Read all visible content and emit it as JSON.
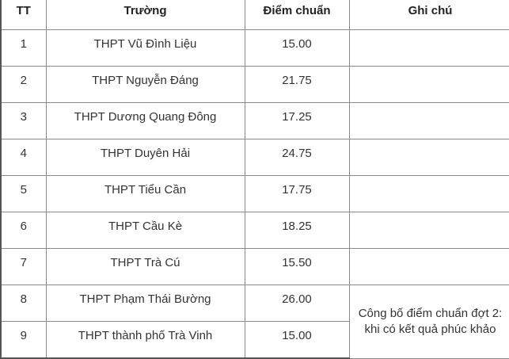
{
  "table": {
    "headers": [
      "TT",
      "Trường",
      "Điểm chuẩn",
      "Ghi chú"
    ],
    "rows": [
      {
        "tt": "1",
        "school": "THPT Vũ Đình Liệu",
        "score": "15.00"
      },
      {
        "tt": "2",
        "school": "THPT Nguyễn Đáng",
        "score": "21.75"
      },
      {
        "tt": "3",
        "school": "THPT Dương Quang Đông",
        "score": "17.25"
      },
      {
        "tt": "4",
        "school": "THPT Duyên Hải",
        "score": "24.75"
      },
      {
        "tt": "5",
        "school": "THPT Tiểu Cần",
        "score": "17.75"
      },
      {
        "tt": "6",
        "school": "THPT Cầu Kè",
        "score": "18.25"
      },
      {
        "tt": "7",
        "school": "THPT Trà Cú",
        "score": "15.50"
      },
      {
        "tt": "8",
        "school": "THPT Phạm Thái Bường",
        "score": "26.00"
      },
      {
        "tt": "9",
        "school": "THPT thành phố Trà Vinh",
        "score": "15.00"
      }
    ],
    "note_rows_8_9": "Công bố điểm chuẩn đợt 2: khi có kết quả phúc khảo"
  }
}
